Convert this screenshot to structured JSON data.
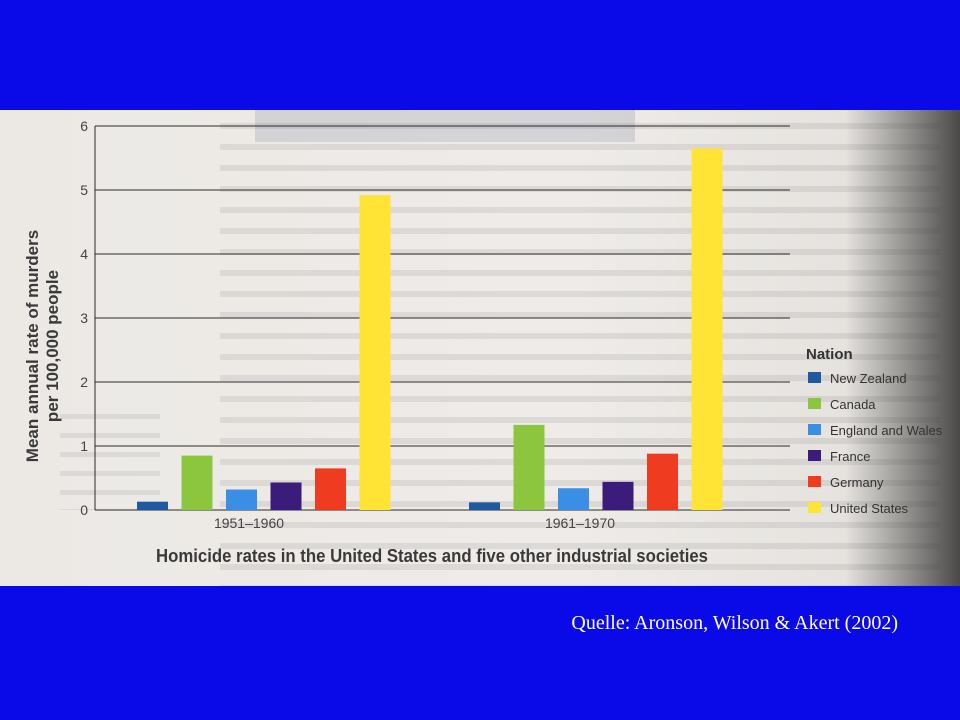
{
  "caption": "Quelle: Aronson, Wilson & Akert (2002)",
  "chart_data": {
    "type": "bar",
    "title": "Homicide rates in the United States and five other industrial societies",
    "ylabel": "Mean annual rate of murders per 100,000 people",
    "ylabel_lines": [
      "Mean annual rate of murders",
      "per 100,000 people"
    ],
    "xlabel": "",
    "ylim": [
      0,
      6
    ],
    "yticks": [
      "0",
      "1",
      "2",
      "3",
      "4",
      "5",
      "6"
    ],
    "grid": true,
    "legend_title": "Nation",
    "legend_position": "right",
    "categories": [
      "1951–1960",
      "1961–1970"
    ],
    "series": [
      {
        "name": "New Zealand",
        "color": "#1f5aa0",
        "values": [
          0.13,
          0.12
        ]
      },
      {
        "name": "Canada",
        "color": "#8cc63f",
        "values": [
          0.85,
          1.33
        ]
      },
      {
        "name": "England and Wales",
        "color": "#3a8ee6",
        "values": [
          0.32,
          0.34
        ]
      },
      {
        "name": "France",
        "color": "#3b1c7a",
        "values": [
          0.43,
          0.44
        ]
      },
      {
        "name": "Germany",
        "color": "#ef3b1f",
        "values": [
          0.65,
          0.88
        ]
      },
      {
        "name": "United States",
        "color": "#ffe335",
        "values": [
          4.92,
          5.65
        ]
      }
    ]
  }
}
